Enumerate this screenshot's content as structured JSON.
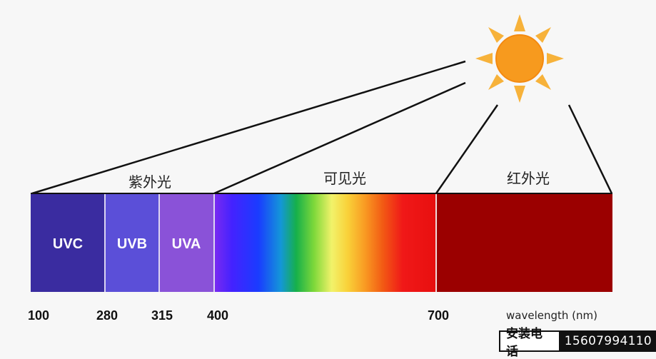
{
  "groups": {
    "uv": "紫外光",
    "visible": "可见光",
    "infrared": "红外光"
  },
  "bands": {
    "uvc": "UVC",
    "uvb": "UVB",
    "uva": "UVA"
  },
  "ticks": [
    "100",
    "280",
    "315",
    "400",
    "700"
  ],
  "axis_label": "wavelength (nm)",
  "contact": {
    "label": "安装电话",
    "phone": "15607994110"
  },
  "colors": {
    "uvc": "#3a2ca0",
    "uvb": "#5b4fd8",
    "uva": "#8a52d8",
    "infrared": "#9b0000",
    "sun_body": "#f79a1e",
    "sun_rays": "#f7b23a"
  },
  "icons": [
    "sun-icon"
  ]
}
